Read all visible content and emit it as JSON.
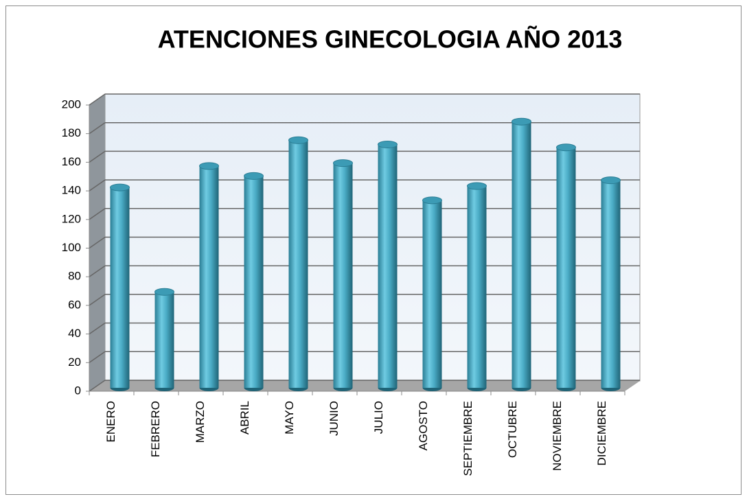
{
  "chart_data": {
    "type": "bar",
    "title": "ATENCIONES GINECOLOGIA AÑO 2013",
    "categories": [
      "ENERO",
      "FEBRERO",
      "MARZO",
      "ABRIL",
      "MAYO",
      "JUNIO",
      "JULIO",
      "AGOSTO",
      "SEPTIEMBRE",
      "OCTUBRE",
      "NOVIEMBRE",
      "DICIEMBRE"
    ],
    "values": [
      140,
      67,
      155,
      148,
      173,
      157,
      170,
      131,
      141,
      186,
      168,
      145
    ],
    "color": "#4bacc6",
    "ylim": [
      0,
      200
    ],
    "yticks": [
      0,
      20,
      40,
      60,
      80,
      100,
      120,
      140,
      160,
      180,
      200
    ],
    "grid": true
  }
}
